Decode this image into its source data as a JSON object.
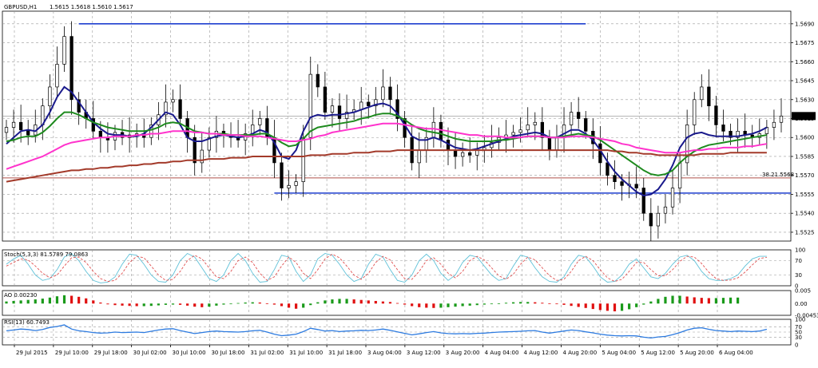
{
  "header": {
    "symbol": "GBPUSD,H1",
    "ohlc": "1.5615 1.5618 1.5610 1.5617"
  },
  "colors": {
    "plot_bg": "#ffffff",
    "grid": "#9a9a9a",
    "candle": "#000000",
    "ema_fast": "#1a1a8c",
    "ema_mid": "#1e8a1e",
    "ema_slow": "#ff33cc",
    "ema_long": "#a33a2a",
    "fib_line": "#b0504a",
    "support_resistance": "#1f3fcf",
    "stoch_main": "#5fc1d8",
    "stoch_signal": "#e05050",
    "ao_up": "#1a9a1a",
    "ao_down": "#e01010",
    "rsi": "#2d7be0",
    "price_tag_bg": "#000000",
    "price_tag_text": "#ffffff"
  },
  "chart_data": [
    {
      "panel": "price",
      "type": "line",
      "title": "GBPUSD,H1",
      "ylim": [
        1.5518,
        1.57
      ],
      "y_ticks": [
        "1.5690",
        "1.5675",
        "1.5660",
        "1.5645",
        "1.5630",
        "1.5615",
        "1.5600",
        "1.5585",
        "1.5570",
        "1.5555",
        "1.5540",
        "1.5525"
      ],
      "current_price_label": "1.5617",
      "current_price": 1.5617,
      "fib_label": "38.21.5568",
      "fib_value": 1.5568,
      "resistance_level": 1.569,
      "support_level": 1.5556,
      "candle_closes": [
        1.5608,
        1.5612,
        1.5606,
        1.5602,
        1.561,
        1.5625,
        1.564,
        1.5658,
        1.568,
        1.563,
        1.562,
        1.5615,
        1.5605,
        1.56,
        1.5598,
        1.5604,
        1.56,
        1.5602,
        1.5603,
        1.56,
        1.561,
        1.5618,
        1.5628,
        1.563,
        1.5615,
        1.56,
        1.558,
        1.559,
        1.56,
        1.5605,
        1.5602,
        1.56,
        1.5598,
        1.5603,
        1.561,
        1.5615,
        1.56,
        1.558,
        1.556,
        1.5562,
        1.5565,
        1.56,
        1.565,
        1.564,
        1.562,
        1.5625,
        1.5615,
        1.562,
        1.5622,
        1.5628,
        1.5625,
        1.563,
        1.564,
        1.563,
        1.5615,
        1.56,
        1.558,
        1.559,
        1.56,
        1.5612,
        1.5598,
        1.559,
        1.5585,
        1.5588,
        1.5586,
        1.559,
        1.5592,
        1.5596,
        1.56,
        1.5602,
        1.5604,
        1.5606,
        1.561,
        1.5612,
        1.56,
        1.559,
        1.56,
        1.561,
        1.562,
        1.5615,
        1.5605,
        1.5595,
        1.558,
        1.557,
        1.5565,
        1.5562,
        1.5563,
        1.556,
        1.554,
        1.553,
        1.554,
        1.5545,
        1.556,
        1.558,
        1.561,
        1.563,
        1.564,
        1.5625,
        1.561,
        1.5605,
        1.56,
        1.5605,
        1.5602,
        1.56,
        1.5603,
        1.5608,
        1.5612,
        1.5617
      ],
      "series": [
        {
          "name": "",
          "values": [
            1.5595,
            1.56,
            1.5605,
            1.5606,
            1.5605,
            1.561,
            1.562,
            1.5632,
            1.564,
            1.5636,
            1.5628,
            1.562,
            1.5612,
            1.5607,
            1.5603,
            1.5602,
            1.5602,
            1.5601,
            1.5601,
            1.5603,
            1.5608,
            1.5614,
            1.562,
            1.5618,
            1.561,
            1.56,
            1.5597,
            1.5597,
            1.5599,
            1.5601,
            1.5602,
            1.5601,
            1.56,
            1.5601,
            1.5603,
            1.5606,
            1.5604,
            1.5596,
            1.5585,
            1.5583,
            1.559,
            1.5605,
            1.5616,
            1.5618,
            1.5617,
            1.5618,
            1.5618,
            1.5619,
            1.562,
            1.5622,
            1.5624,
            1.5626,
            1.5627,
            1.5625,
            1.5619,
            1.561,
            1.5601,
            1.5598,
            1.5598,
            1.56,
            1.5598,
            1.5595,
            1.5592,
            1.5591,
            1.559,
            1.5591,
            1.5593,
            1.5595,
            1.5597,
            1.5599,
            1.5601,
            1.5602,
            1.5603,
            1.5604,
            1.5603,
            1.56,
            1.56,
            1.5603,
            1.5606,
            1.5606,
            1.5603,
            1.5598,
            1.559,
            1.5581,
            1.5573,
            1.5567,
            1.5562,
            1.5557,
            1.5554,
            1.5555,
            1.5559,
            1.5567,
            1.5578,
            1.5592,
            1.56,
            1.5603,
            1.5604,
            1.5602,
            1.5601,
            1.5601,
            1.5601,
            1.5601,
            1.5602,
            1.5603,
            1.5605,
            1.5608
          ]
        },
        {
          "name": "",
          "values": [
            1.5597,
            1.5598,
            1.56,
            1.5601,
            1.5601,
            1.5604,
            1.5609,
            1.5615,
            1.562,
            1.562,
            1.5618,
            1.5615,
            1.5612,
            1.561,
            1.5608,
            1.5607,
            1.5606,
            1.5605,
            1.5605,
            1.5605,
            1.5606,
            1.5608,
            1.5611,
            1.5612,
            1.5611,
            1.5608,
            1.5605,
            1.5604,
            1.5603,
            1.5603,
            1.5603,
            1.5602,
            1.5602,
            1.5602,
            1.5602,
            1.5603,
            1.5603,
            1.56,
            1.5596,
            1.5593,
            1.5594,
            1.5599,
            1.5605,
            1.5608,
            1.5609,
            1.561,
            1.5611,
            1.5612,
            1.5613,
            1.5615,
            1.5616,
            1.5618,
            1.5619,
            1.5619,
            1.5617,
            1.5614,
            1.561,
            1.5607,
            1.5605,
            1.5604,
            1.5603,
            1.5601,
            1.5599,
            1.5598,
            1.5597,
            1.5597,
            1.5597,
            1.5597,
            1.5598,
            1.5598,
            1.5599,
            1.56,
            1.5601,
            1.5601,
            1.5601,
            1.56,
            1.56,
            1.5601,
            1.5602,
            1.5603,
            1.5602,
            1.5601,
            1.5598,
            1.5594,
            1.559,
            1.5586,
            1.5582,
            1.5578,
            1.5574,
            1.5571,
            1.557,
            1.5571,
            1.5574,
            1.558,
            1.5585,
            1.5589,
            1.5592,
            1.5594,
            1.5595,
            1.5596,
            1.5597,
            1.5598,
            1.5599,
            1.56,
            1.5601,
            1.5602
          ]
        },
        {
          "name": "",
          "values": [
            1.5575,
            1.5577,
            1.5579,
            1.5581,
            1.5583,
            1.5585,
            1.5588,
            1.5591,
            1.5594,
            1.5596,
            1.5597,
            1.5598,
            1.5599,
            1.56,
            1.56,
            1.5601,
            1.5601,
            1.5601,
            1.5602,
            1.5602,
            1.5603,
            1.5603,
            1.5604,
            1.5605,
            1.5605,
            1.5605,
            1.5604,
            1.5604,
            1.5603,
            1.5603,
            1.5602,
            1.5602,
            1.5602,
            1.5601,
            1.5601,
            1.5601,
            1.56,
            1.5599,
            1.5598,
            1.5597,
            1.5597,
            1.5598,
            1.5599,
            1.5601,
            1.5602,
            1.5604,
            1.5605,
            1.5606,
            1.5607,
            1.5608,
            1.5609,
            1.561,
            1.5611,
            1.5611,
            1.5611,
            1.561,
            1.5609,
            1.5608,
            1.5607,
            1.5607,
            1.5606,
            1.5605,
            1.5604,
            1.5603,
            1.5602,
            1.5602,
            1.5601,
            1.5601,
            1.5601,
            1.56,
            1.56,
            1.56,
            1.5601,
            1.5601,
            1.5601,
            1.56,
            1.56,
            1.56,
            1.5601,
            1.5601,
            1.5601,
            1.56,
            1.5599,
            1.5598,
            1.5597,
            1.5595,
            1.5594,
            1.5592,
            1.5591,
            1.559,
            1.5589,
            1.5588,
            1.5588,
            1.5588,
            1.5589,
            1.559,
            1.559,
            1.5591,
            1.5591,
            1.5592,
            1.5592,
            1.5592,
            1.5593,
            1.5593,
            1.5594,
            1.5595
          ]
        },
        {
          "name": "",
          "values": [
            1.5565,
            1.5566,
            1.5567,
            1.5568,
            1.5569,
            1.557,
            1.5571,
            1.5572,
            1.5573,
            1.5574,
            1.5574,
            1.5575,
            1.5575,
            1.5576,
            1.5576,
            1.5577,
            1.5577,
            1.5578,
            1.5578,
            1.5579,
            1.5579,
            1.558,
            1.558,
            1.5581,
            1.5581,
            1.5582,
            1.5582,
            1.5582,
            1.5583,
            1.5583,
            1.5583,
            1.5584,
            1.5584,
            1.5584,
            1.5585,
            1.5585,
            1.5585,
            1.5585,
            1.5585,
            1.5585,
            1.5585,
            1.5585,
            1.5586,
            1.5586,
            1.5586,
            1.5587,
            1.5587,
            1.5587,
            1.5588,
            1.5588,
            1.5588,
            1.5589,
            1.5589,
            1.5589,
            1.559,
            1.559,
            1.559,
            1.559,
            1.559,
            1.559,
            1.559,
            1.559,
            1.559,
            1.559,
            1.559,
            1.559,
            1.559,
            1.559,
            1.559,
            1.559,
            1.559,
            1.559,
            1.559,
            1.559,
            1.559,
            1.559,
            1.559,
            1.559,
            1.559,
            1.559,
            1.559,
            1.559,
            1.559,
            1.559,
            1.5589,
            1.5589,
            1.5588,
            1.5588,
            1.5587,
            1.5587,
            1.5586,
            1.5586,
            1.5586,
            1.5586,
            1.5586,
            1.5586,
            1.5587,
            1.5587,
            1.5587,
            1.5587,
            1.5588,
            1.5588,
            1.5588,
            1.5588,
            1.5588,
            1.5588
          ]
        }
      ]
    },
    {
      "panel": "stoch",
      "type": "line",
      "title": "Stoch(5,3,3) 81.5789 79.0863",
      "ylim": [
        0,
        100
      ],
      "y_ticks": [
        "100",
        "70",
        "30",
        "0"
      ],
      "series": [
        {
          "name": "",
          "values": [
            60,
            75,
            85,
            60,
            30,
            15,
            20,
            45,
            80,
            90,
            70,
            40,
            15,
            8,
            10,
            25,
            60,
            88,
            85,
            60,
            30,
            12,
            10,
            30,
            70,
            90,
            80,
            50,
            20,
            12,
            30,
            70,
            90,
            70,
            35,
            10,
            12,
            45,
            85,
            80,
            40,
            12,
            30,
            75,
            90,
            85,
            60,
            30,
            12,
            20,
            60,
            88,
            80,
            45,
            15,
            10,
            30,
            70,
            88,
            70,
            35,
            15,
            30,
            65,
            85,
            80,
            55,
            30,
            15,
            20,
            55,
            85,
            80,
            50,
            25,
            12,
            10,
            25,
            60,
            85,
            80,
            55,
            25,
            10,
            12,
            30,
            60,
            75,
            50,
            25,
            20,
            35,
            60,
            80,
            85,
            70,
            40,
            20,
            15,
            15,
            20,
            30,
            55,
            75,
            82,
            82
          ]
        },
        {
          "name": "",
          "values": [
            55,
            65,
            75,
            72,
            55,
            35,
            22,
            30,
            55,
            78,
            80,
            65,
            40,
            20,
            12,
            15,
            35,
            65,
            82,
            78,
            55,
            30,
            15,
            18,
            40,
            70,
            85,
            75,
            50,
            25,
            20,
            40,
            70,
            80,
            65,
            35,
            15,
            25,
            55,
            80,
            65,
            35,
            20,
            45,
            75,
            88,
            78,
            55,
            30,
            18,
            35,
            65,
            82,
            72,
            45,
            20,
            18,
            40,
            70,
            78,
            60,
            35,
            22,
            40,
            70,
            82,
            72,
            50,
            28,
            18,
            32,
            60,
            80,
            72,
            50,
            28,
            15,
            18,
            40,
            70,
            82,
            70,
            45,
            22,
            12,
            18,
            40,
            65,
            65,
            45,
            28,
            28,
            45,
            68,
            82,
            80,
            62,
            38,
            20,
            15,
            16,
            22,
            38,
            58,
            76,
            79
          ]
        }
      ]
    },
    {
      "panel": "ao",
      "type": "bar",
      "title": "AO 0.00230",
      "ylim": [
        -0.00453,
        0.005
      ],
      "y_ticks": [
        "0.005",
        "0.00",
        "-0.00453"
      ],
      "values": [
        0.0008,
        0.001,
        0.0012,
        0.0014,
        0.0016,
        0.0019,
        0.0023,
        0.0028,
        0.0032,
        0.003,
        0.0026,
        0.002,
        0.0012,
        0.0004,
        -0.0003,
        -0.0006,
        -0.0008,
        -0.0009,
        -0.001,
        -0.001,
        -0.0009,
        -0.0007,
        -0.0005,
        -0.0004,
        -0.0005,
        -0.0008,
        -0.0012,
        -0.0014,
        -0.0012,
        -0.0008,
        -0.0004,
        -0.0002,
        0.0002,
        0.0004,
        0.0005,
        0.0004,
        0.0001,
        -0.0004,
        -0.001,
        -0.0016,
        -0.002,
        -0.0016,
        -0.0006,
        0.0005,
        0.0012,
        0.0016,
        0.0018,
        0.0018,
        0.0016,
        0.0014,
        0.0012,
        0.001,
        0.0008,
        0.0006,
        0.0002,
        -0.0004,
        -0.001,
        -0.0014,
        -0.0016,
        -0.0017,
        -0.0016,
        -0.0014,
        -0.0012,
        -0.001,
        -0.0008,
        -0.0006,
        -0.0004,
        -0.0002,
        0.0001,
        0.0003,
        0.0005,
        0.0006,
        0.0006,
        0.0005,
        0.0003,
        0.0001,
        -0.0002,
        -0.0005,
        -0.0009,
        -0.0013,
        -0.0017,
        -0.0021,
        -0.0025,
        -0.0028,
        -0.003,
        -0.0028,
        -0.0022,
        -0.0014,
        -0.0004,
        0.0008,
        0.0018,
        0.0026,
        0.003,
        0.003,
        0.0027,
        0.0024,
        0.0022,
        0.0021,
        0.0021,
        0.0022,
        0.0023,
        0.0023
      ]
    },
    {
      "panel": "rsi",
      "type": "line",
      "title": "RSI(13) 60.7493",
      "ylim": [
        0,
        100
      ],
      "y_ticks": [
        "100",
        "70",
        "50",
        "30",
        "0"
      ],
      "series": [
        {
          "name": "",
          "values": [
            55,
            58,
            62,
            60,
            56,
            60,
            68,
            72,
            78,
            62,
            55,
            52,
            48,
            46,
            47,
            50,
            48,
            49,
            50,
            48,
            53,
            58,
            62,
            63,
            56,
            50,
            44,
            48,
            52,
            54,
            52,
            51,
            50,
            52,
            55,
            57,
            50,
            42,
            36,
            38,
            42,
            52,
            65,
            60,
            54,
            56,
            52,
            54,
            55,
            57,
            56,
            58,
            62,
            57,
            51,
            45,
            39,
            43,
            48,
            52,
            47,
            44,
            43,
            44,
            43,
            45,
            46,
            48,
            50,
            51,
            52,
            53,
            55,
            56,
            50,
            46,
            50,
            54,
            58,
            56,
            51,
            47,
            42,
            38,
            36,
            35,
            36,
            35,
            30,
            27,
            31,
            33,
            40,
            48,
            58,
            65,
            67,
            61,
            56,
            54,
            52,
            54,
            53,
            52,
            54,
            61
          ]
        }
      ]
    }
  ],
  "x_axis": {
    "labels": [
      "29 Jul 2015",
      "29 Jul 10:00",
      "29 Jul 18:00",
      "30 Jul 02:00",
      "30 Jul 10:00",
      "30 Jul 18:00",
      "31 Jul 02:00",
      "31 Jul 10:00",
      "31 Jul 18:00",
      "3 Aug 04:00",
      "3 Aug 12:00",
      "3 Aug 20:00",
      "4 Aug 04:00",
      "4 Aug 12:00",
      "4 Aug 20:00",
      "5 Aug 04:00",
      "5 Aug 12:00",
      "5 Aug 20:00",
      "6 Aug 04:00"
    ]
  }
}
